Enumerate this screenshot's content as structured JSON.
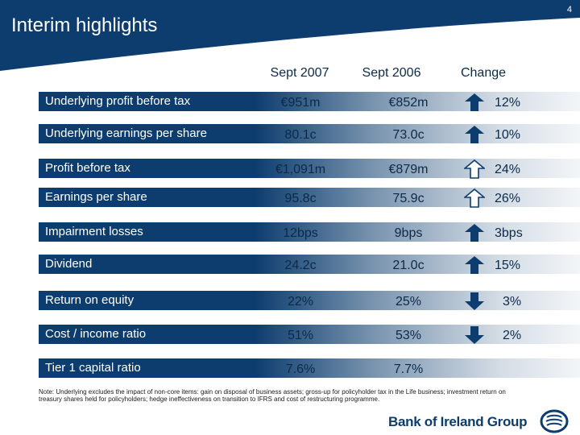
{
  "page_number": "4",
  "title": "Interim highlights",
  "columns": {
    "current": "Sept 2007",
    "prior": "Sept 2006",
    "change": "Change"
  },
  "rows": [
    {
      "label": "Underlying profit before tax",
      "current": "€951m",
      "prior": "€852m",
      "direction": "up",
      "change": "12%"
    },
    {
      "label": "Underlying earnings per share",
      "current": "80.1c",
      "prior": "73.0c",
      "direction": "up",
      "change": "10%"
    },
    {
      "label": "Profit before tax",
      "current": "€1,091m",
      "prior": "€879m",
      "direction": "up-outline",
      "change": "24%"
    },
    {
      "label": "Earnings per share",
      "current": "95.8c",
      "prior": "75.9c",
      "direction": "up-outline",
      "change": "26%"
    },
    {
      "label": "Impairment losses",
      "current": "12bps",
      "prior": "9bps",
      "direction": "up",
      "change": "3bps"
    },
    {
      "label": "Dividend",
      "current": "24.2c",
      "prior": "21.0c",
      "direction": "up",
      "change": "15%"
    },
    {
      "label": "Return on equity",
      "current": "22%",
      "prior": "25%",
      "direction": "down",
      "change": "3%"
    },
    {
      "label": "Cost / income ratio",
      "current": "51%",
      "prior": "53%",
      "direction": "down",
      "change": "2%"
    },
    {
      "label": "Tier 1 capital ratio",
      "current": "7.6%",
      "prior": "7.7%",
      "direction": "none",
      "change": ""
    }
  ],
  "note": "Note: Underlying excludes the impact of non-core items: gain on disposal of business assets; gross-up for policyholder tax in the Life business; investment return on treasury shares held for policyholders; hedge ineffectiveness on transition to IFRS and cost of restructuring programme.",
  "brand": "Bank of Ireland Group",
  "colors": {
    "navy": "#0d3d6e",
    "text": "#0b2a4a"
  }
}
